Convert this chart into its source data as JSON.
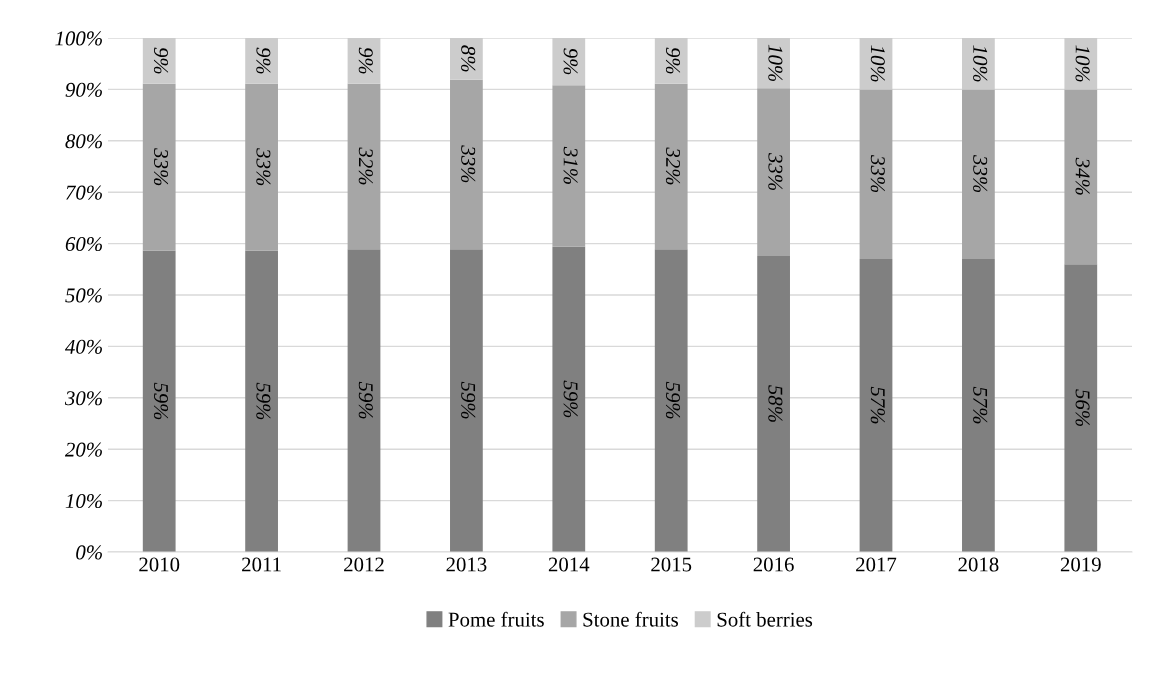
{
  "chart_data": {
    "type": "bar",
    "stacked": true,
    "categories": [
      "2010",
      "2011",
      "2012",
      "2013",
      "2014",
      "2015",
      "2016",
      "2017",
      "2018",
      "2019"
    ],
    "series": [
      {
        "name": "Pome fruits",
        "color": "#808080",
        "values": [
          58.6,
          58.6,
          58.9,
          58.9,
          59.4,
          58.9,
          57.6,
          57,
          57,
          56
        ],
        "value_labels": [
          "59%",
          "59%",
          "59%",
          "59%",
          "59%",
          "59%",
          "58%",
          "57%",
          "57%",
          "56%"
        ]
      },
      {
        "name": "Stone fruits",
        "color": "#a6a6a6",
        "values": [
          32.5,
          32.5,
          32.2,
          33,
          31.4,
          32.2,
          32.6,
          33,
          33,
          34
        ],
        "value_labels": [
          "33%",
          "33%",
          "32%",
          "33%",
          "31%",
          "32%",
          "33%",
          "33%",
          "33%",
          "34%"
        ]
      },
      {
        "name": "Soft berries",
        "color": "#cccccc",
        "values": [
          8.9,
          8.9,
          8.9,
          8.1,
          9.2,
          8.9,
          9.8,
          10,
          10,
          10
        ],
        "value_labels": [
          "9%",
          "9%",
          "9%",
          "8%",
          "9%",
          "9%",
          "10%",
          "10%",
          "10%",
          "10%"
        ]
      }
    ],
    "ylim": [
      0,
      100
    ],
    "yticks": [
      {
        "value": 0,
        "label": "0%"
      },
      {
        "value": 10,
        "label": "10%"
      },
      {
        "value": 20,
        "label": "20%"
      },
      {
        "value": 30,
        "label": "30%"
      },
      {
        "value": 40,
        "label": "40%"
      },
      {
        "value": 50,
        "label": "50%"
      },
      {
        "value": 60,
        "label": "60%"
      },
      {
        "value": 70,
        "label": "70%"
      },
      {
        "value": 80,
        "label": "80%"
      },
      {
        "value": 90,
        "label": "90%"
      },
      {
        "value": 100,
        "label": "100%"
      }
    ],
    "grid": "y",
    "legend": "bottom"
  }
}
